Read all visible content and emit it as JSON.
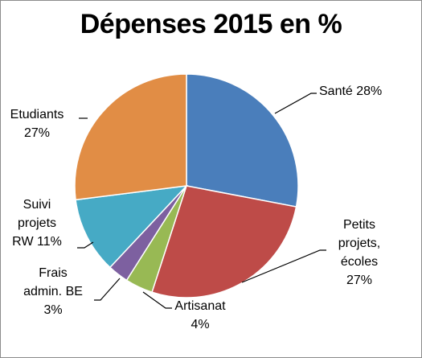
{
  "chart_data": {
    "type": "pie",
    "title": "Dépenses 2015 en %",
    "slices": [
      {
        "label_lines": [
          "Santé 28%"
        ],
        "value": 28,
        "color": "#4A7EBB"
      },
      {
        "label_lines": [
          "Petits",
          "projets,",
          "écoles",
          "27%"
        ],
        "value": 27,
        "color": "#BE4B48"
      },
      {
        "label_lines": [
          "Artisanat",
          "4%"
        ],
        "value": 4,
        "color": "#98B954"
      },
      {
        "label_lines": [
          "Frais",
          "admin. BE",
          "3%"
        ],
        "value": 3,
        "color": "#7D60A0"
      },
      {
        "label_lines": [
          "Suivi",
          "projets",
          "RW 11%"
        ],
        "value": 11,
        "color": "#46AAC5"
      },
      {
        "label_lines": [
          "Etudiants",
          "27%"
        ],
        "value": 27,
        "color": "#E18D45"
      }
    ]
  }
}
